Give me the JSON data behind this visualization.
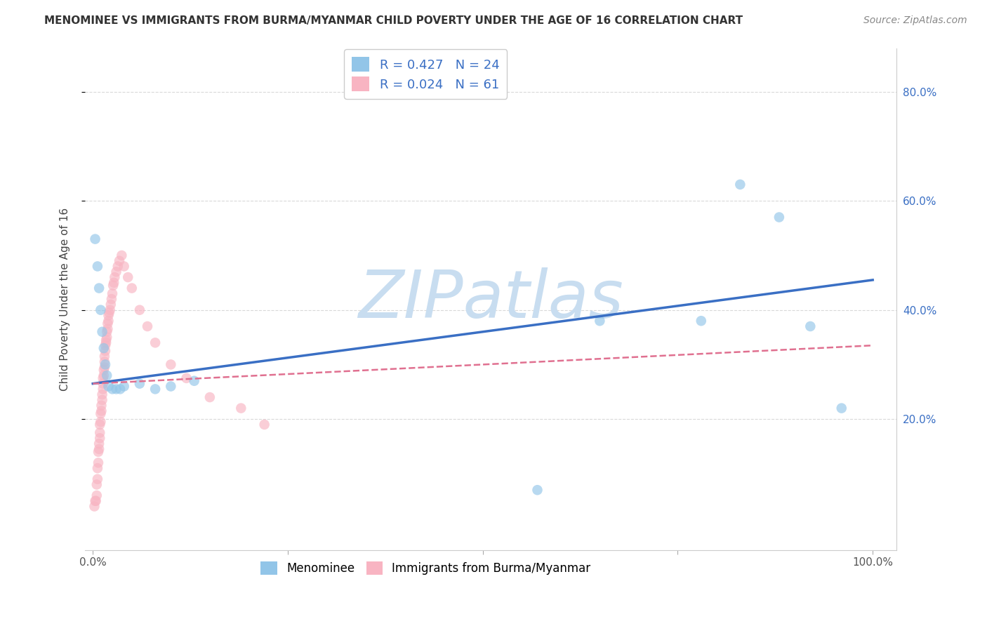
{
  "title": "MENOMINEE VS IMMIGRANTS FROM BURMA/MYANMAR CHILD POVERTY UNDER THE AGE OF 16 CORRELATION CHART",
  "source": "Source: ZipAtlas.com",
  "ylabel": "Child Poverty Under the Age of 16",
  "legend_label1": "Menominee",
  "legend_label2": "Immigrants from Burma/Myanmar",
  "R1": 0.427,
  "N1": 24,
  "R2": 0.024,
  "N2": 61,
  "color1": "#92c5e8",
  "color2": "#f8b4c2",
  "line_color1": "#3a6fc4",
  "line_color2": "#e07090",
  "background_color": "#ffffff",
  "grid_color": "#d0d0d0",
  "menominee_x": [
    0.003,
    0.006,
    0.008,
    0.01,
    0.012,
    0.014,
    0.016,
    0.018,
    0.02,
    0.025,
    0.03,
    0.035,
    0.04,
    0.06,
    0.08,
    0.1,
    0.13,
    0.57,
    0.65,
    0.78,
    0.83,
    0.88,
    0.92,
    0.96
  ],
  "menominee_y": [
    0.53,
    0.48,
    0.44,
    0.4,
    0.36,
    0.33,
    0.3,
    0.28,
    0.26,
    0.255,
    0.255,
    0.255,
    0.26,
    0.265,
    0.255,
    0.26,
    0.27,
    0.07,
    0.38,
    0.38,
    0.63,
    0.57,
    0.37,
    0.22
  ],
  "burma_x": [
    0.002,
    0.003,
    0.004,
    0.005,
    0.005,
    0.006,
    0.006,
    0.007,
    0.007,
    0.008,
    0.008,
    0.009,
    0.009,
    0.009,
    0.01,
    0.01,
    0.011,
    0.011,
    0.012,
    0.012,
    0.013,
    0.013,
    0.013,
    0.014,
    0.014,
    0.015,
    0.015,
    0.015,
    0.016,
    0.016,
    0.017,
    0.017,
    0.018,
    0.018,
    0.019,
    0.019,
    0.02,
    0.02,
    0.021,
    0.022,
    0.023,
    0.024,
    0.025,
    0.026,
    0.027,
    0.028,
    0.03,
    0.032,
    0.034,
    0.037,
    0.04,
    0.045,
    0.05,
    0.06,
    0.07,
    0.08,
    0.1,
    0.12,
    0.15,
    0.19,
    0.22
  ],
  "burma_y": [
    0.04,
    0.05,
    0.05,
    0.06,
    0.08,
    0.09,
    0.11,
    0.12,
    0.14,
    0.145,
    0.155,
    0.165,
    0.175,
    0.19,
    0.195,
    0.21,
    0.215,
    0.225,
    0.235,
    0.245,
    0.255,
    0.265,
    0.275,
    0.28,
    0.29,
    0.295,
    0.305,
    0.315,
    0.325,
    0.335,
    0.34,
    0.345,
    0.35,
    0.36,
    0.365,
    0.375,
    0.38,
    0.39,
    0.395,
    0.4,
    0.41,
    0.42,
    0.43,
    0.445,
    0.45,
    0.46,
    0.47,
    0.48,
    0.49,
    0.5,
    0.48,
    0.46,
    0.44,
    0.4,
    0.37,
    0.34,
    0.3,
    0.275,
    0.24,
    0.22,
    0.19
  ],
  "menominee_trendline_x": [
    0.0,
    1.0
  ],
  "menominee_trendline_y": [
    0.265,
    0.455
  ],
  "burma_trendline_x": [
    0.0,
    1.0
  ],
  "burma_trendline_y": [
    0.265,
    0.335
  ],
  "xlim": [
    -0.01,
    1.03
  ],
  "ylim": [
    -0.04,
    0.88
  ],
  "marker_size": 110,
  "marker_alpha": 0.65,
  "watermark_text": "ZIPatlas",
  "watermark_color": "#c8ddf0",
  "watermark_fontsize": 68,
  "title_fontsize": 11,
  "source_fontsize": 10,
  "legend_fontsize": 13,
  "axis_label_fontsize": 11,
  "tick_fontsize": 11
}
